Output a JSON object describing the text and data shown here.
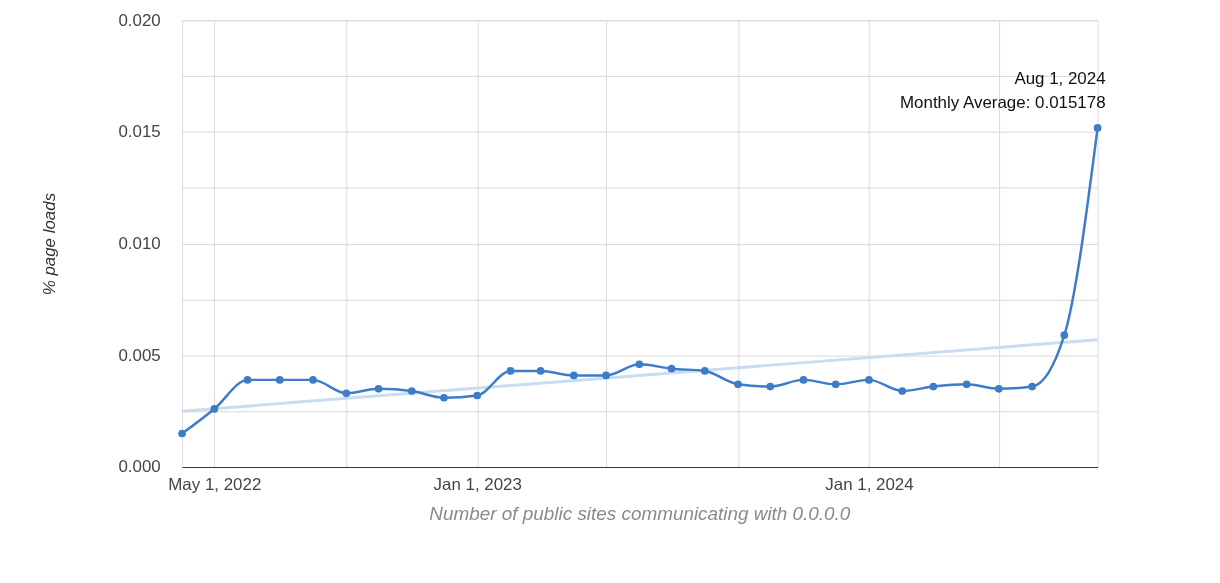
{
  "chart_data": {
    "type": "line",
    "ylabel": "% page loads",
    "x": [
      "2022-04-01",
      "2022-05-01",
      "2022-06-01",
      "2022-07-01",
      "2022-08-01",
      "2022-09-01",
      "2022-10-01",
      "2022-11-01",
      "2022-12-01",
      "2023-01-01",
      "2023-02-01",
      "2023-03-01",
      "2023-04-01",
      "2023-05-01",
      "2023-06-01",
      "2023-07-01",
      "2023-08-01",
      "2023-09-01",
      "2023-10-01",
      "2023-11-01",
      "2023-12-01",
      "2024-01-01",
      "2024-02-01",
      "2024-03-01",
      "2024-04-01",
      "2024-05-01",
      "2024-06-01",
      "2024-07-01",
      "2024-08-01"
    ],
    "series": [
      {
        "type": "line",
        "color": "#c9dcf0",
        "marker": "none",
        "x": [
          "2022-04-01",
          "2024-08-01"
        ],
        "values": [
          0.0025,
          0.0057
        ]
      },
      {
        "color": "#3d7cc9",
        "marker": "circle",
        "values": [
          0.0015,
          0.0026,
          0.0039,
          0.0039,
          0.0039,
          0.0033,
          0.0035,
          0.0034,
          0.0031,
          0.0032,
          0.0043,
          0.0043,
          0.0041,
          0.0041,
          0.0046,
          0.0044,
          0.0043,
          0.0037,
          0.0036,
          0.0039,
          0.0037,
          0.0039,
          0.0034,
          0.0036,
          0.0037,
          0.0035,
          0.0036,
          0.0059,
          0.015178
        ]
      }
    ],
    "xlim": [
      "2022-04-01",
      "2024-08-01"
    ],
    "xticks": [
      {
        "value": "2022-05-01",
        "label": "May 1, 2022"
      },
      {
        "value": "2022-09-01",
        "label": null
      },
      {
        "value": "2023-01-01",
        "label": "Jan 1, 2023"
      },
      {
        "value": "2023-05-01",
        "label": null
      },
      {
        "value": "2023-09-01",
        "label": null
      },
      {
        "value": "2024-01-01",
        "label": "Jan 1, 2024"
      },
      {
        "value": "2024-05-01",
        "label": null
      }
    ],
    "ylim": [
      0,
      0.02
    ],
    "yticks": [
      {
        "value": 0,
        "label": "0.000"
      },
      {
        "value": 0.0025,
        "label": null
      },
      {
        "value": 0.005,
        "label": "0.005"
      },
      {
        "value": 0.0075,
        "label": null
      },
      {
        "value": 0.01,
        "label": "0.010"
      },
      {
        "value": 0.0125,
        "label": null
      },
      {
        "value": 0.015,
        "label": "0.015"
      },
      {
        "value": 0.0175,
        "label": null
      },
      {
        "value": 0.02,
        "label": "0.020"
      }
    ],
    "grid": true,
    "legend": false,
    "annotations": [
      {
        "text": "Aug 1, 2024\nMonthly Average: 0.015178",
        "x": "2024-08-01",
        "y": 0.015178
      },
      "Number of public sites communicating with 0.0.0.0"
    ]
  }
}
